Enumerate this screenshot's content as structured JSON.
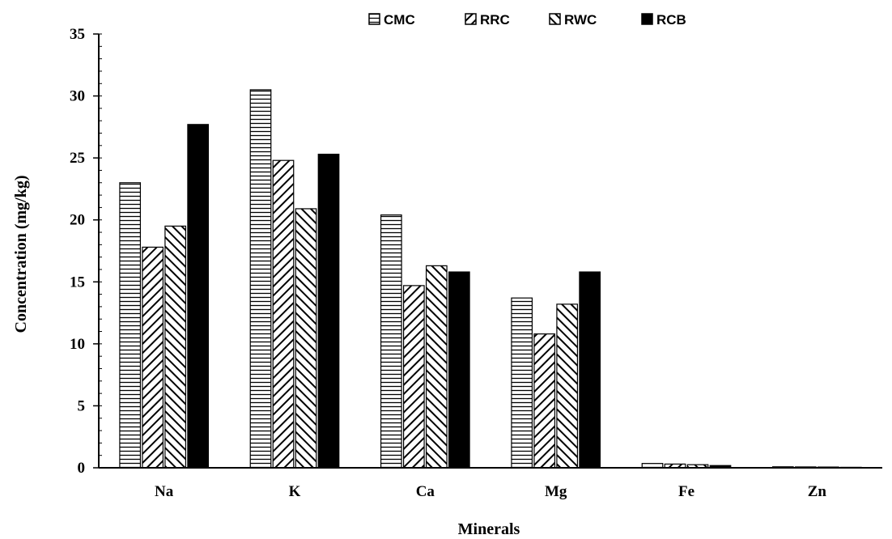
{
  "chart_data": {
    "type": "bar",
    "xlabel": "Minerals",
    "ylabel": "Concentration (mg/kg)",
    "ylim": [
      0,
      35
    ],
    "yticks": [
      "0",
      "5",
      "10",
      "15",
      "20",
      "25",
      "30",
      "35"
    ],
    "categories": [
      "Na",
      "K",
      "Ca",
      "Mg",
      "Fe",
      "Zn"
    ],
    "legend_position": "top",
    "grid": false,
    "series": [
      {
        "name": "CMC",
        "pattern": "horizontal-lines",
        "values": [
          23.0,
          30.5,
          20.4,
          13.7,
          0.35,
          0.08
        ]
      },
      {
        "name": "RRC",
        "pattern": "back-diagonal-lines",
        "values": [
          17.8,
          24.8,
          14.7,
          10.8,
          0.3,
          0.07
        ]
      },
      {
        "name": "RWC",
        "pattern": "forward-diagonal-lines",
        "values": [
          19.5,
          20.9,
          16.3,
          13.2,
          0.25,
          0.06
        ]
      },
      {
        "name": "RCB",
        "pattern": "solid",
        "values": [
          27.7,
          25.3,
          15.8,
          15.8,
          0.18,
          0.04
        ]
      }
    ]
  }
}
